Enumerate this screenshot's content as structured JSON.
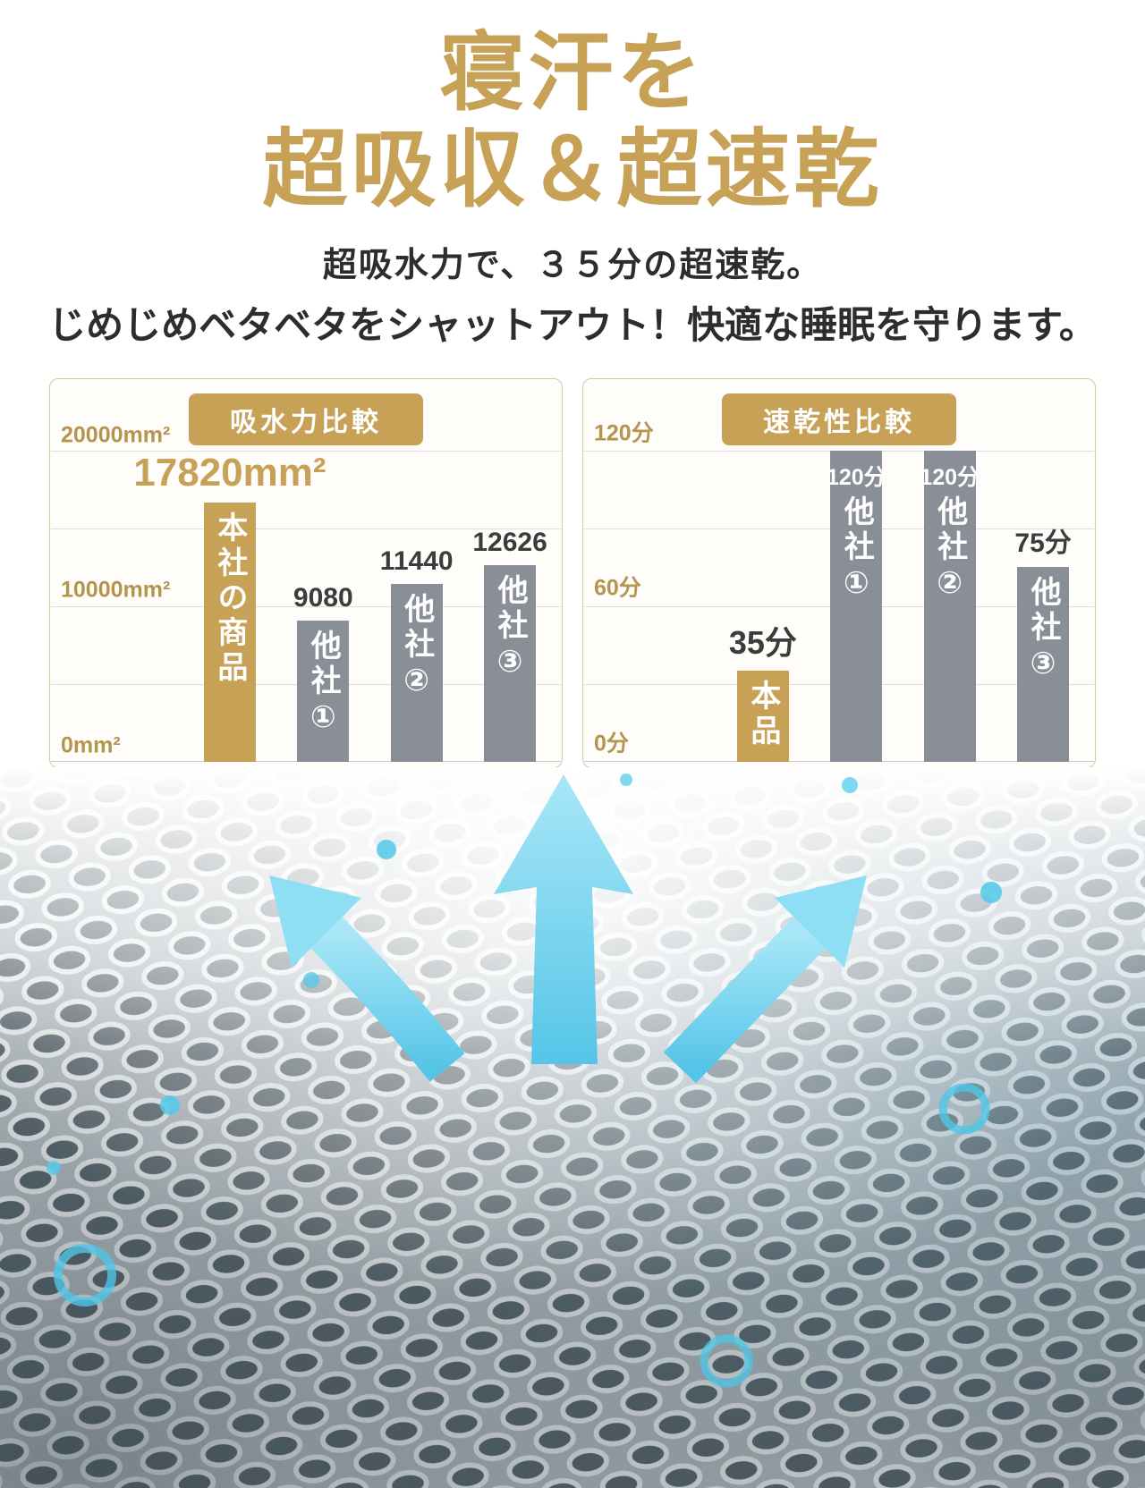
{
  "page": {
    "title_line1": "寝汗を",
    "title_line2": "超吸収＆超速乾",
    "subtitle_line1": "超吸水力で、３５分の超速乾。",
    "subtitle_line2": "じめじめベタベタをシャットアウト！快適な睡眠を守ります。"
  },
  "colors": {
    "gold": "#C6A156",
    "gray_bar": "#8A8E97",
    "text_dark": "#2d2d2d",
    "arrow_blue": "#6fd2ee",
    "droplet_blue": "#55c9e8"
  },
  "chart_data": [
    {
      "type": "bar",
      "title": "吸水力比較",
      "categories": [
        "本社の商品",
        "他社①",
        "他社②",
        "他社③"
      ],
      "values": [
        17820,
        9080,
        11440,
        12626
      ],
      "value_labels": [
        "17820mm²",
        "9080",
        "11440",
        "12626"
      ],
      "unit": "mm²",
      "ylim": [
        0,
        20000
      ],
      "ytick_labels": [
        "0mm²",
        "10000mm²",
        "20000mm²"
      ],
      "bar_colors": [
        "gold",
        "gray",
        "gray",
        "gray"
      ],
      "grid": true,
      "legend": "none",
      "highlight_index": 0
    },
    {
      "type": "bar",
      "title": "速乾性比較",
      "categories": [
        "本品",
        "他社①",
        "他社②",
        "他社③"
      ],
      "values": [
        35,
        120,
        120,
        75
      ],
      "value_labels": [
        "35分",
        "120分",
        "120分",
        "75分"
      ],
      "unit": "分",
      "ylim": [
        0,
        120
      ],
      "ytick_labels": [
        "0分",
        "60分",
        "120分"
      ],
      "bar_colors": [
        "gold",
        "gray",
        "gray",
        "gray"
      ],
      "value_label_position": [
        "above",
        "inside",
        "inside",
        "above"
      ],
      "grid": true,
      "legend": "none",
      "highlight_index": 0
    }
  ]
}
